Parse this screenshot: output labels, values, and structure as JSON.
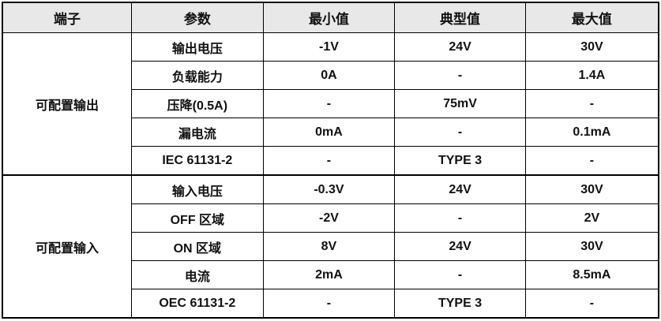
{
  "headers": [
    "端子",
    "参数",
    "最小值",
    "典型值",
    "最大值"
  ],
  "groups": [
    {
      "name": "可配置输出",
      "rows": [
        [
          "输出电压",
          "-1V",
          "24V",
          "30V"
        ],
        [
          "负载能力",
          "0A",
          "-",
          "1.4A"
        ],
        [
          "压降(0.5A)",
          "-",
          "75mV",
          "-"
        ],
        [
          "漏电流",
          "0mA",
          "-",
          "0.1mA"
        ],
        [
          "IEC 61131-2",
          "-",
          "TYPE 3",
          "-"
        ]
      ]
    },
    {
      "name": "可配置输入",
      "rows": [
        [
          "输入电压",
          "-0.3V",
          "24V",
          "30V"
        ],
        [
          "OFF 区域",
          "-2V",
          "-",
          "2V"
        ],
        [
          "ON 区域",
          "8V",
          "24V",
          "30V"
        ],
        [
          "电流",
          "2mA",
          "-",
          "8.5mA"
        ],
        [
          "OEC 61131-2",
          "-",
          "TYPE 3",
          "-"
        ]
      ]
    }
  ]
}
